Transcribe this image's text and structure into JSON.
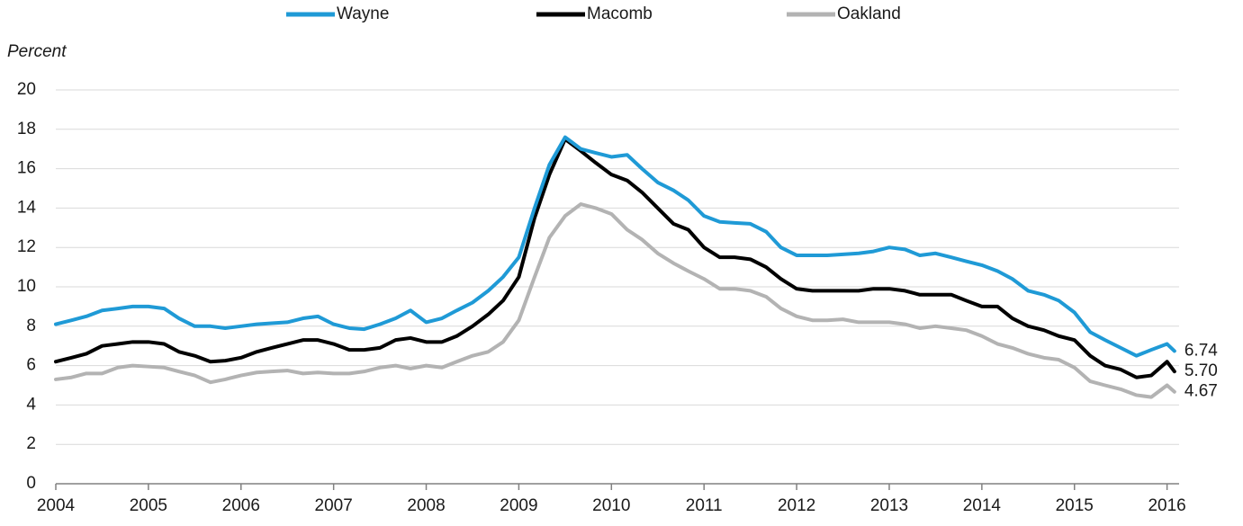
{
  "chart_data": {
    "type": "line",
    "y_axis_label": "Percent",
    "x": [
      2004,
      2004.17,
      2004.33,
      2004.5,
      2004.67,
      2004.83,
      2005,
      2005.17,
      2005.33,
      2005.5,
      2005.67,
      2005.83,
      2006,
      2006.17,
      2006.33,
      2006.5,
      2006.67,
      2006.83,
      2007,
      2007.17,
      2007.33,
      2007.5,
      2007.67,
      2007.83,
      2008,
      2008.17,
      2008.33,
      2008.5,
      2008.67,
      2008.83,
      2009,
      2009.17,
      2009.33,
      2009.5,
      2009.67,
      2009.83,
      2010,
      2010.17,
      2010.33,
      2010.5,
      2010.67,
      2010.83,
      2011,
      2011.17,
      2011.33,
      2011.5,
      2011.67,
      2011.83,
      2012,
      2012.17,
      2012.33,
      2012.5,
      2012.67,
      2012.83,
      2013,
      2013.17,
      2013.33,
      2013.5,
      2013.67,
      2013.83,
      2014,
      2014.17,
      2014.33,
      2014.5,
      2014.67,
      2014.83,
      2015,
      2015.17,
      2015.33,
      2015.5,
      2015.67,
      2015.83,
      2016,
      2016.08
    ],
    "series": [
      {
        "name": "Wayne",
        "color": "#1f9ad6",
        "values": [
          8.1,
          8.3,
          8.5,
          8.8,
          8.9,
          9.0,
          9.0,
          8.9,
          8.4,
          8.0,
          8.0,
          7.9,
          8.0,
          8.1,
          8.15,
          8.2,
          8.4,
          8.5,
          8.1,
          7.9,
          7.85,
          8.1,
          8.4,
          8.8,
          8.2,
          8.4,
          8.8,
          9.2,
          9.8,
          10.5,
          11.5,
          14.0,
          16.2,
          17.6,
          17.0,
          16.8,
          16.6,
          16.7,
          16.0,
          15.3,
          14.9,
          14.4,
          13.6,
          13.3,
          13.25,
          13.2,
          12.8,
          12.0,
          11.6,
          11.6,
          11.6,
          11.65,
          11.7,
          11.8,
          12.0,
          11.9,
          11.6,
          11.7,
          11.5,
          11.3,
          11.1,
          10.8,
          10.4,
          9.8,
          9.6,
          9.3,
          8.7,
          7.7,
          7.3,
          6.9,
          6.5,
          6.8,
          7.1,
          6.74
        ],
        "value_labels": [
          null,
          null,
          null,
          null,
          null,
          null,
          null,
          null,
          null,
          null,
          null,
          null,
          null,
          null,
          null,
          null,
          null,
          null,
          null,
          null,
          null,
          null,
          null,
          null,
          null,
          null,
          null,
          null,
          null,
          null,
          null,
          null,
          null,
          null,
          null,
          null,
          null,
          null,
          null,
          null,
          null,
          null,
          null,
          null,
          null,
          null,
          null,
          null,
          null,
          null,
          null,
          null,
          null,
          null,
          null,
          null,
          null,
          null,
          null,
          null,
          null,
          null,
          null,
          null,
          null,
          null,
          null,
          null,
          null,
          null,
          null,
          null,
          null,
          "6.74"
        ]
      },
      {
        "name": "Macomb",
        "color": "#000000",
        "values": [
          6.2,
          6.4,
          6.6,
          7.0,
          7.1,
          7.2,
          7.2,
          7.1,
          6.7,
          6.5,
          6.2,
          6.25,
          6.4,
          6.7,
          6.9,
          7.1,
          7.3,
          7.3,
          7.1,
          6.8,
          6.8,
          6.9,
          7.3,
          7.4,
          7.2,
          7.2,
          7.5,
          8.0,
          8.6,
          9.3,
          10.5,
          13.5,
          15.7,
          17.5,
          16.9,
          16.3,
          15.7,
          15.4,
          14.8,
          14.0,
          13.2,
          12.9,
          12.0,
          11.5,
          11.5,
          11.4,
          11.0,
          10.4,
          9.9,
          9.8,
          9.8,
          9.8,
          9.8,
          9.9,
          9.9,
          9.8,
          9.6,
          9.6,
          9.6,
          9.3,
          9.0,
          9.0,
          8.4,
          8.0,
          7.8,
          7.5,
          7.3,
          6.5,
          6.0,
          5.8,
          5.4,
          5.5,
          6.2,
          5.7
        ],
        "value_labels": [
          null,
          null,
          null,
          null,
          null,
          null,
          null,
          null,
          null,
          null,
          null,
          null,
          null,
          null,
          null,
          null,
          null,
          null,
          null,
          null,
          null,
          null,
          null,
          null,
          null,
          null,
          null,
          null,
          null,
          null,
          null,
          null,
          null,
          null,
          null,
          null,
          null,
          null,
          null,
          null,
          null,
          null,
          null,
          null,
          null,
          null,
          null,
          null,
          null,
          null,
          null,
          null,
          null,
          null,
          null,
          null,
          null,
          null,
          null,
          null,
          null,
          null,
          null,
          null,
          null,
          null,
          null,
          null,
          null,
          null,
          null,
          null,
          null,
          "5.70"
        ]
      },
      {
        "name": "Oakland",
        "color": "#b3b3b3",
        "values": [
          5.3,
          5.4,
          5.6,
          5.6,
          5.9,
          6.0,
          5.95,
          5.9,
          5.7,
          5.5,
          5.15,
          5.3,
          5.5,
          5.65,
          5.7,
          5.75,
          5.6,
          5.65,
          5.6,
          5.6,
          5.7,
          5.9,
          6.0,
          5.85,
          6.0,
          5.9,
          6.2,
          6.5,
          6.7,
          7.2,
          8.3,
          10.5,
          12.5,
          13.6,
          14.2,
          14.0,
          13.7,
          12.9,
          12.4,
          11.7,
          11.2,
          10.8,
          10.4,
          9.9,
          9.9,
          9.8,
          9.5,
          8.9,
          8.5,
          8.3,
          8.3,
          8.35,
          8.2,
          8.2,
          8.2,
          8.1,
          7.9,
          8.0,
          7.9,
          7.8,
          7.5,
          7.1,
          6.9,
          6.6,
          6.4,
          6.3,
          5.9,
          5.2,
          5.0,
          4.8,
          4.5,
          4.4,
          5.0,
          4.67
        ],
        "value_labels": [
          null,
          null,
          null,
          null,
          null,
          null,
          null,
          null,
          null,
          null,
          null,
          null,
          null,
          null,
          null,
          null,
          null,
          null,
          null,
          null,
          null,
          null,
          null,
          null,
          null,
          null,
          null,
          null,
          null,
          null,
          null,
          null,
          null,
          null,
          null,
          null,
          null,
          null,
          null,
          null,
          null,
          null,
          null,
          null,
          null,
          null,
          null,
          null,
          null,
          null,
          null,
          null,
          null,
          null,
          null,
          null,
          null,
          null,
          null,
          null,
          null,
          null,
          null,
          null,
          null,
          null,
          null,
          null,
          null,
          null,
          null,
          null,
          null,
          "4.67"
        ]
      }
    ],
    "xlim": [
      2004,
      2016.13
    ],
    "xticks": [
      2004,
      2005,
      2006,
      2007,
      2008,
      2009,
      2010,
      2011,
      2012,
      2013,
      2014,
      2015,
      2016
    ],
    "ylim": [
      0,
      20
    ],
    "yticks": [
      0,
      2,
      4,
      6,
      8,
      10,
      12,
      14,
      16,
      18,
      20
    ],
    "grid": true,
    "legend": "top"
  }
}
